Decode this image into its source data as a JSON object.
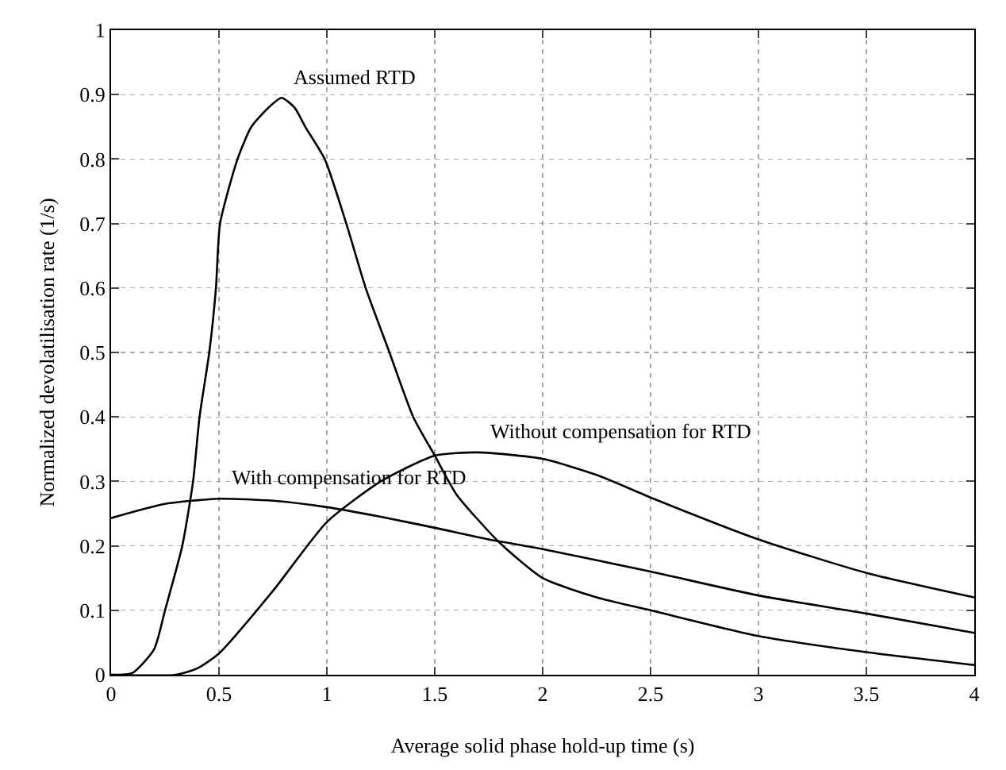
{
  "chart_data": {
    "type": "line",
    "xlabel": "Average solid phase hold-up time (s)",
    "ylabel": "Normalized devolatilisation rate (1/s)",
    "xlim": [
      0,
      4
    ],
    "ylim": [
      0,
      1
    ],
    "xticks": [
      0,
      0.5,
      1,
      1.5,
      2,
      2.5,
      3,
      3.5,
      4
    ],
    "yticks": [
      0,
      0.1,
      0.2,
      0.3,
      0.4,
      0.5,
      0.6,
      0.7,
      0.8,
      0.9,
      1
    ],
    "grid": true,
    "line_style": "solid",
    "marker": "none",
    "series": [
      {
        "name": "Assumed RTD",
        "color": "#000000",
        "x": [
          0,
          0.1,
          0.2,
          0.25,
          0.33,
          0.38,
          0.41,
          0.455,
          0.486,
          0.505,
          0.586,
          0.65,
          0.73,
          0.79,
          0.85,
          0.9,
          0.99,
          1.09,
          1.18,
          1.29,
          1.4,
          1.5,
          1.6,
          1.8,
          2,
          2.25,
          2.5,
          3,
          3.5,
          4
        ],
        "values": [
          0,
          0.003,
          0.04,
          0.1,
          0.2,
          0.3,
          0.4,
          0.5,
          0.6,
          0.7,
          0.8,
          0.85,
          0.88,
          0.895,
          0.88,
          0.85,
          0.8,
          0.7,
          0.6,
          0.5,
          0.4,
          0.34,
          0.28,
          0.205,
          0.15,
          0.12,
          0.1,
          0.06,
          0.035,
          0.015
        ]
      },
      {
        "name": "Without compensation for RTD",
        "color": "#000000",
        "x": [
          0,
          0.3,
          0.4,
          0.5,
          0.75,
          1,
          1.25,
          1.5,
          1.7,
          2,
          2.25,
          2.5,
          3,
          3.5,
          4
        ],
        "values": [
          0,
          0,
          0.01,
          0.033,
          0.13,
          0.237,
          0.3,
          0.34,
          0.345,
          0.335,
          0.31,
          0.275,
          0.21,
          0.158,
          0.12
        ]
      },
      {
        "name": "With compensation for RTD",
        "color": "#000000",
        "x": [
          0,
          0.25,
          0.5,
          0.75,
          1,
          1.25,
          1.5,
          1.75,
          2,
          2.5,
          3,
          3.5,
          4
        ],
        "values": [
          0.243,
          0.265,
          0.273,
          0.27,
          0.26,
          0.245,
          0.228,
          0.21,
          0.195,
          0.16,
          0.123,
          0.095,
          0.065
        ]
      }
    ]
  }
}
